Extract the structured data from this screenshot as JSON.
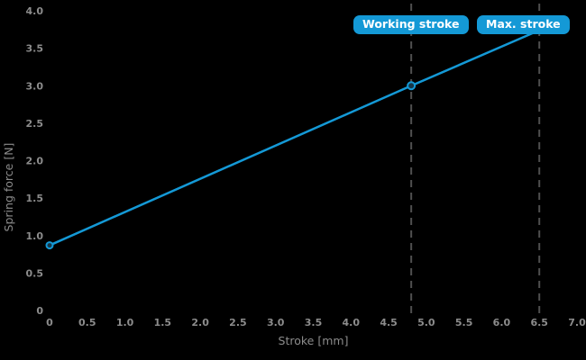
{
  "colors": {
    "background": "#000000",
    "accent_blue": "#1499d6",
    "tick_label_gray": "#8c8c8c",
    "axis_title_gray": "#8c8c8c",
    "dashed_line_gray": "#4f4f4f",
    "marker_fill": "#173748",
    "badge_text": "#ffffff"
  },
  "chart_data": {
    "type": "line",
    "title": "",
    "xlabel": "Stroke [mm]",
    "ylabel": "Spring force [N]",
    "xlim": [
      0,
      7.0
    ],
    "ylim": [
      0,
      4.0
    ],
    "grid": false,
    "legend": false,
    "x_ticks": {
      "values": [
        0,
        0.5,
        1.0,
        1.5,
        2.0,
        2.5,
        3.0,
        3.5,
        4.0,
        4.5,
        5.0,
        5.5,
        6.0,
        6.5,
        7.0
      ],
      "labels": [
        "0",
        "0.5",
        "1.0",
        "1.5",
        "2.0",
        "2.5",
        "3.0",
        "3.5",
        "4.0",
        "4.5",
        "5.0",
        "5.5",
        "6.0",
        "6.5",
        "7.0"
      ]
    },
    "y_ticks": {
      "values": [
        0,
        0.5,
        1.0,
        1.5,
        2.0,
        2.5,
        3.0,
        3.5,
        4.0
      ],
      "labels": [
        "0",
        "0.5",
        "1.0",
        "1.5",
        "2.0",
        "2.5",
        "3.0",
        "3.5",
        "4.0"
      ]
    },
    "series": [
      {
        "name": "spring-force",
        "points": [
          [
            0,
            0.87
          ],
          [
            4.8,
            3.0
          ],
          [
            6.5,
            3.74
          ]
        ],
        "marker_points": [
          [
            0,
            0.87
          ],
          [
            4.8,
            3.0
          ]
        ]
      }
    ],
    "annotations": [
      {
        "name": "working-stroke",
        "label": "Working stroke",
        "x": 4.8
      },
      {
        "name": "max-stroke",
        "label": "Max. stroke",
        "x": 6.5
      }
    ]
  }
}
